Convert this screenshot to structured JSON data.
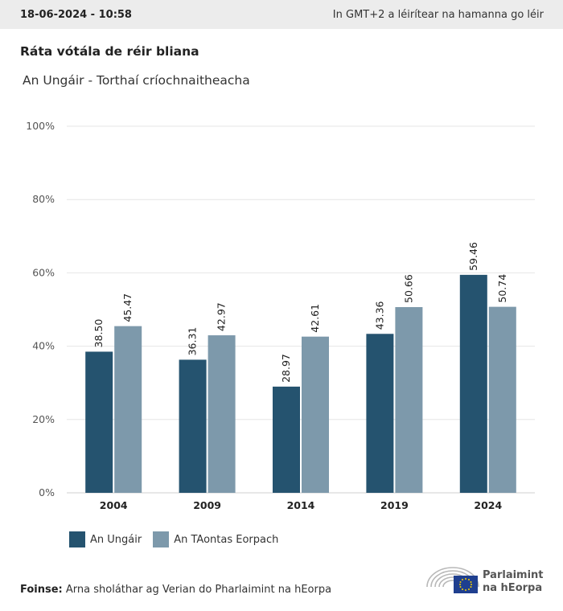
{
  "header": {
    "date": "18-06-2024 - 10:58",
    "timezone_note": "In GMT+2 a léirítear na hamanna go léir"
  },
  "chart_data": {
    "type": "bar",
    "title": "Ráta vótála de réir bliana",
    "subtitle": "An Ungáir - Torthaí críochnaitheacha",
    "categories": [
      "2004",
      "2009",
      "2014",
      "2019",
      "2024"
    ],
    "series": [
      {
        "name": "An Ungáir",
        "values": [
          38.5,
          36.31,
          28.97,
          43.36,
          59.46
        ],
        "color": "#25536f"
      },
      {
        "name": "An TAontas Eorpach",
        "values": [
          45.47,
          42.97,
          42.61,
          50.66,
          50.74
        ],
        "color": "#7d99ab"
      }
    ],
    "value_labels": [
      [
        "38.50",
        "36.31",
        "28.97",
        "43.36",
        "59.46"
      ],
      [
        "45.47",
        "42.97",
        "42.61",
        "50.66",
        "50.74"
      ]
    ],
    "ylim": [
      0,
      100
    ],
    "yticks": [
      "0%",
      "20%",
      "40%",
      "60%",
      "80%",
      "100%"
    ],
    "grid": true,
    "legend_position": "bottom-left"
  },
  "footer": {
    "source_label": "Foinse:",
    "source_text": "Arna sholáthar ag Verian do Pharlaimint na hEorpa"
  },
  "logo": {
    "line1": "Parlaimint",
    "line2": "na hEorpa",
    "icon": "european-parliament-hemicycle-icon"
  }
}
